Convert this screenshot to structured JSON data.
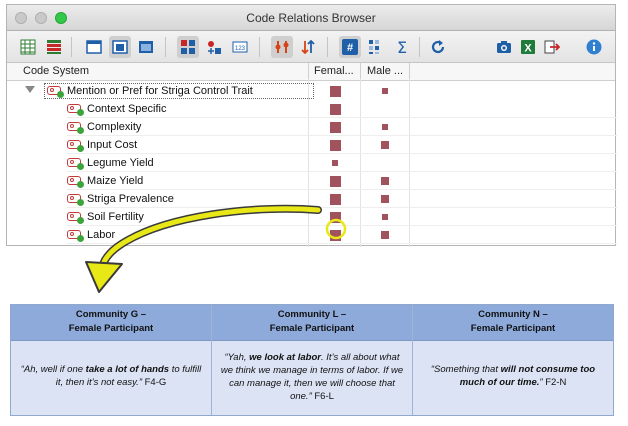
{
  "window": {
    "title": "Code Relations Browser",
    "toolbar_icons": [
      "table-grid-icon",
      "table-color-icon",
      "layout-top-icon",
      "layout-middle-icon",
      "layout-full-icon",
      "grid-cross-icon",
      "grid-plus-icon",
      "number-icon",
      "filter-icon",
      "sort-icon",
      "hash-icon",
      "matrix-icon",
      "sigma-icon",
      "refresh-icon",
      "camera-icon",
      "excel-icon",
      "export-icon",
      "info-icon"
    ]
  },
  "columns": {
    "code_system": "Code System",
    "col1": "Femal...",
    "col2": "Male ..."
  },
  "tree": {
    "root": "Mention or Pref for Striga Control Trait",
    "children": [
      {
        "label": "Context Specific",
        "female": "large",
        "male": "none"
      },
      {
        "label": "Complexity",
        "female": "large",
        "male": "small"
      },
      {
        "label": "Input Cost",
        "female": "large",
        "male": "medium"
      },
      {
        "label": "Legume Yield",
        "female": "small",
        "male": "none"
      },
      {
        "label": "Maize Yield",
        "female": "large",
        "male": "medium"
      },
      {
        "label": "Striga Prevalence",
        "female": "large",
        "male": "medium"
      },
      {
        "label": "Soil Fertility",
        "female": "large",
        "male": "small"
      },
      {
        "label": "Labor",
        "female": "large",
        "male": "medium"
      }
    ],
    "root_female": "large",
    "root_male": "small"
  },
  "colors": {
    "square": "#a0525d",
    "highlight": "#e8e817",
    "table_header": "#8eaadb",
    "table_body": "#dbe3f4"
  },
  "table": {
    "headers": [
      {
        "line1": "Community G –",
        "line2": "Female Participant"
      },
      {
        "line1": "Community L –",
        "line2": "Female Participant"
      },
      {
        "line1": "Community N –",
        "line2": "Female Participant"
      }
    ],
    "quotes": [
      {
        "pre": "“Ah, well if one ",
        "bold": "take a lot of hands",
        "post": " to fulfill it, then it’s not easy.”",
        "ref": " F4-G"
      },
      {
        "pre": "“Yah, ",
        "bold": "we look at labor",
        "post": ". It’s all about what we think we manage in terms of labor. If we can manage it, then we will choose that one.”",
        "ref": " F6-L"
      },
      {
        "pre": "“Something that ",
        "bold": "will not consume too much of our time.",
        "post": "”",
        "ref": " F2-N"
      }
    ]
  }
}
